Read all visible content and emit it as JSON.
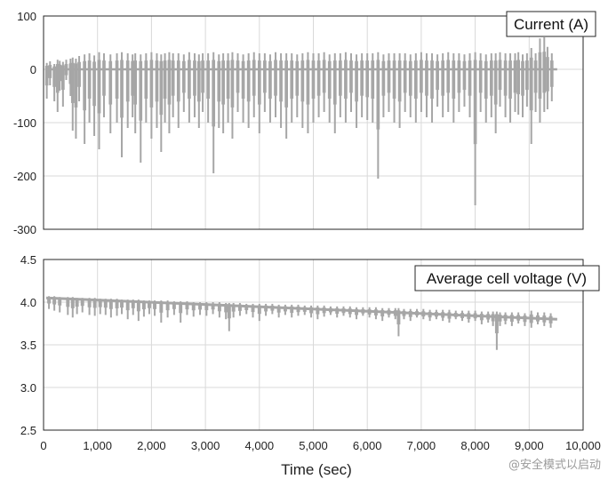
{
  "chart_data": [
    {
      "type": "line",
      "label": "Current (A)",
      "xlim": [
        0,
        10000
      ],
      "ylim": [
        -300,
        100
      ],
      "y_ticks": [
        "100",
        "0",
        "-100",
        "-200",
        "-300"
      ],
      "grid": true,
      "series": [
        {
          "name": "Current (A)",
          "color": "#a6a6a6",
          "baseline": 0,
          "x": [
            60,
            120,
            200,
            260,
            300,
            360,
            420,
            500,
            540,
            600,
            660,
            760,
            850,
            940,
            1030,
            1120,
            1240,
            1360,
            1450,
            1560,
            1650,
            1700,
            1800,
            1900,
            2000,
            2100,
            2180,
            2250,
            2330,
            2400,
            2500,
            2600,
            2700,
            2800,
            2880,
            2950,
            3050,
            3150,
            3250,
            3330,
            3420,
            3500,
            3600,
            3700,
            3800,
            3900,
            4000,
            4100,
            4200,
            4300,
            4400,
            4500,
            4600,
            4700,
            4800,
            4900,
            5000,
            5100,
            5200,
            5300,
            5400,
            5500,
            5600,
            5700,
            5800,
            5900,
            6000,
            6100,
            6200,
            6300,
            6400,
            6500,
            6600,
            6700,
            6800,
            6900,
            7000,
            7100,
            7200,
            7300,
            7400,
            7500,
            7600,
            7700,
            7800,
            7900,
            8000,
            8100,
            8200,
            8300,
            8380,
            8460,
            8560,
            8650,
            8740,
            8800,
            8880,
            8960,
            9040,
            9120,
            9200,
            9280,
            9340,
            9420
          ],
          "top": [
            12,
            15,
            10,
            18,
            16,
            14,
            18,
            20,
            22,
            20,
            25,
            28,
            30,
            26,
            32,
            30,
            28,
            30,
            32,
            30,
            28,
            30,
            28,
            30,
            32,
            30,
            28,
            30,
            32,
            30,
            30,
            28,
            32,
            30,
            28,
            30,
            30,
            32,
            28,
            30,
            30,
            32,
            30,
            28,
            30,
            32,
            30,
            30,
            28,
            32,
            30,
            30,
            30,
            28,
            30,
            32,
            30,
            30,
            32,
            28,
            30,
            30,
            32,
            30,
            28,
            30,
            30,
            30,
            32,
            28,
            30,
            30,
            30,
            30,
            28,
            30,
            32,
            30,
            30,
            28,
            30,
            32,
            30,
            30,
            28,
            30,
            32,
            30,
            28,
            30,
            30,
            32,
            30,
            30,
            30,
            32,
            28,
            30,
            40,
            30,
            58,
            60,
            42,
            30
          ],
          "bottom": [
            -55,
            -30,
            -60,
            -80,
            -40,
            -70,
            -20,
            -50,
            -115,
            -130,
            -60,
            -140,
            -100,
            -125,
            -150,
            -90,
            -120,
            -100,
            -165,
            -110,
            -90,
            -120,
            -175,
            -100,
            -130,
            -110,
            -155,
            -100,
            -120,
            -90,
            -110,
            -80,
            -100,
            -90,
            -110,
            -80,
            -100,
            -195,
            -110,
            -120,
            -100,
            -130,
            -80,
            -100,
            -110,
            -90,
            -120,
            -80,
            -100,
            -90,
            -110,
            -130,
            -100,
            -90,
            -110,
            -120,
            -100,
            -90,
            -80,
            -100,
            -120,
            -90,
            -100,
            -80,
            -110,
            -90,
            -95,
            -100,
            -205,
            -90,
            -80,
            -100,
            -110,
            -80,
            -90,
            -100,
            -80,
            -90,
            -100,
            -70,
            -90,
            -80,
            -100,
            -80,
            -70,
            -90,
            -255,
            -80,
            -100,
            -90,
            -120,
            -70,
            -90,
            -100,
            -80,
            -85,
            -90,
            -70,
            -140,
            -80,
            -100,
            -80,
            -75,
            -60
          ]
        }
      ]
    },
    {
      "type": "line",
      "label": "Average cell voltage (V)",
      "xlim": [
        0,
        10000
      ],
      "ylim": [
        2.5,
        4.5
      ],
      "y_ticks": [
        "4.5",
        "4.0",
        "3.5",
        "3.0",
        "2.5"
      ],
      "x_ticks": [
        "0",
        "1,000",
        "2,000",
        "3,000",
        "4,000",
        "5,000",
        "6,000",
        "7,000",
        "8,000",
        "9,000",
        "10,000"
      ],
      "xlabel": "Time (sec)",
      "grid": true,
      "series": [
        {
          "name": "Average cell voltage (V)",
          "color": "#a6a6a6",
          "baseline_start": 4.05,
          "baseline_end": 3.8,
          "x": [
            100,
            200,
            300,
            450,
            540,
            620,
            720,
            850,
            950,
            1050,
            1150,
            1250,
            1360,
            1450,
            1560,
            1660,
            1760,
            1860,
            1960,
            2060,
            2180,
            2300,
            2420,
            2540,
            2660,
            2780,
            2900,
            3020,
            3140,
            3260,
            3380,
            3440,
            3520,
            3640,
            3760,
            3880,
            4000,
            4120,
            4240,
            4360,
            4480,
            4600,
            4720,
            4840,
            4960,
            5080,
            5200,
            5320,
            5440,
            5560,
            5680,
            5800,
            5920,
            6040,
            6160,
            6280,
            6400,
            6520,
            6580,
            6680,
            6800,
            6920,
            7040,
            7160,
            7280,
            7400,
            7520,
            7640,
            7760,
            7880,
            8000,
            8120,
            8240,
            8330,
            8400,
            8460,
            8560,
            8680,
            8800,
            8920,
            9040,
            9160,
            9280,
            9400
          ],
          "dip": [
            3.92,
            3.9,
            3.88,
            3.85,
            3.82,
            3.86,
            3.88,
            3.85,
            3.84,
            3.86,
            3.85,
            3.82,
            3.84,
            3.86,
            3.8,
            3.85,
            3.78,
            3.83,
            3.86,
            3.84,
            3.76,
            3.82,
            3.85,
            3.76,
            3.85,
            3.83,
            3.85,
            3.84,
            3.86,
            3.82,
            3.8,
            3.66,
            3.82,
            3.84,
            3.86,
            3.82,
            3.78,
            3.84,
            3.86,
            3.82,
            3.85,
            3.82,
            3.84,
            3.85,
            3.82,
            3.8,
            3.83,
            3.85,
            3.82,
            3.84,
            3.82,
            3.8,
            3.84,
            3.82,
            3.8,
            3.78,
            3.82,
            3.8,
            3.6,
            3.8,
            3.78,
            3.82,
            3.8,
            3.78,
            3.8,
            3.78,
            3.76,
            3.8,
            3.78,
            3.76,
            3.78,
            3.74,
            3.76,
            3.72,
            3.44,
            3.72,
            3.74,
            3.72,
            3.75,
            3.72,
            3.7,
            3.74,
            3.72,
            3.7
          ],
          "rise": [
            4.07,
            4.07,
            4.06,
            4.06,
            4.06,
            4.05,
            4.05,
            4.05,
            4.05,
            4.04,
            4.04,
            4.04,
            4.04,
            4.03,
            4.03,
            4.03,
            4.03,
            4.02,
            4.02,
            4.02,
            4.02,
            4.02,
            4.01,
            4.01,
            4.01,
            4.0,
            4.0,
            4.0,
            4.0,
            4.0,
            3.99,
            3.99,
            3.99,
            3.99,
            3.98,
            3.98,
            3.98,
            3.98,
            3.98,
            3.97,
            3.97,
            3.97,
            3.97,
            3.96,
            3.96,
            3.96,
            3.96,
            3.95,
            3.95,
            3.95,
            3.95,
            3.94,
            3.94,
            3.94,
            3.94,
            3.93,
            3.93,
            3.93,
            3.93,
            3.92,
            3.92,
            3.92,
            3.92,
            3.91,
            3.91,
            3.91,
            3.91,
            3.9,
            3.9,
            3.9,
            3.9,
            3.89,
            3.89,
            3.89,
            3.89,
            3.88,
            3.88,
            3.88,
            3.88,
            3.87,
            3.9,
            3.88,
            3.88,
            3.87
          ]
        }
      ]
    }
  ],
  "watermark": "@安全模式以启动"
}
